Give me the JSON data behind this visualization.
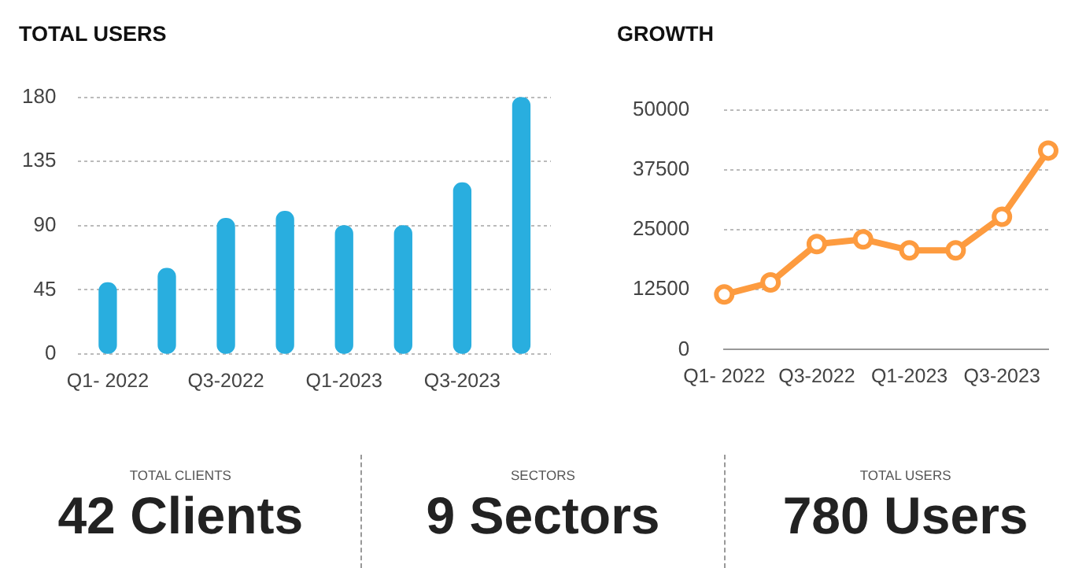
{
  "chart_data": [
    {
      "type": "bar",
      "title": "TOTAL USERS",
      "categories": [
        "Q1- 2022",
        null,
        "Q3-2022",
        null,
        "Q1-2023",
        null,
        "Q3-2023",
        null
      ],
      "values": [
        50,
        60,
        95,
        100,
        90,
        90,
        120,
        180
      ],
      "color": "#29aedf",
      "ylim": [
        0,
        180
      ],
      "yticks": [
        0,
        45,
        90,
        135,
        180
      ],
      "grid": "y"
    },
    {
      "type": "line",
      "title": "GROWTH",
      "categories": [
        "Q1- 2022",
        null,
        "Q3-2022",
        null,
        "Q1-2023",
        null,
        "Q3-2023",
        null
      ],
      "values": [
        11500,
        14000,
        22000,
        23000,
        20700,
        20700,
        27700,
        41500
      ],
      "color": "#fd9b3f",
      "ylim": [
        0,
        50000
      ],
      "yticks": [
        0,
        12500,
        25000,
        37500,
        50000
      ],
      "grid": "y",
      "marker": "circle"
    },
    {
      "type": "other",
      "annotations": [
        "TOTAL CLIENTS",
        "42 Clients",
        "SECTORS",
        "9 Sectors",
        "TOTAL USERS",
        "780 Users"
      ]
    }
  ]
}
